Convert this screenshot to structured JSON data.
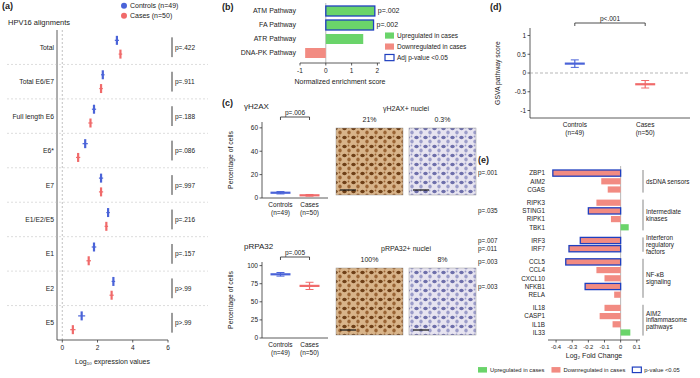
{
  "chart_data": [
    {
      "type": "dot",
      "panel_label": "(a)",
      "title": "HPV16 alignments",
      "orientation": "horizontal",
      "legend": "top",
      "categories": [
        "Total",
        "Total E6/E7",
        "Full length E6",
        "E6*",
        "E7",
        "E1/E2/E5",
        "E1",
        "E2",
        "E5"
      ],
      "series": [
        {
          "name": "Controls (n=49)",
          "color": "#4a63d8",
          "values": [
            3.1,
            2.3,
            1.8,
            1.3,
            2.2,
            2.6,
            1.8,
            2.9,
            1.1
          ],
          "errors": [
            0.12,
            0.1,
            0.12,
            0.15,
            0.12,
            0.1,
            0.13,
            0.1,
            0.2
          ]
        },
        {
          "name": "Cases (n=50)",
          "color": "#f06a6a",
          "values": [
            3.3,
            2.2,
            1.6,
            0.9,
            2.2,
            2.5,
            1.5,
            2.8,
            0.6
          ],
          "errors": [
            0.1,
            0.1,
            0.12,
            0.12,
            0.12,
            0.1,
            0.13,
            0.12,
            0.15
          ]
        }
      ],
      "annotations": [
        "p=.422",
        "p=.911",
        "p=.188",
        "p=.086",
        "p=.997",
        "p=.216",
        "p=.157",
        "p>.99",
        "p>.99"
      ],
      "x_label": "Log₁₀ expression values",
      "xlim": [
        -0.3,
        6
      ],
      "xticks": [
        0,
        2,
        4,
        6
      ]
    },
    {
      "type": "bar",
      "panel_label": "(b)",
      "orientation": "horizontal",
      "legend": "right",
      "categories": [
        "ATM Pathway",
        "FA Pathway",
        "ATR Pathway",
        "DNA-PK Pathway"
      ],
      "values": [
        1.9,
        1.85,
        1.45,
        -0.8
      ],
      "colors": [
        "#6ad46a",
        "#6ad46a",
        "#6ad46a",
        "#f28b82"
      ],
      "annotations": [
        "p=.002",
        "p=.002",
        null,
        null
      ],
      "x_label": "Normalized enrichment score",
      "xlim": [
        -1,
        2.1
      ],
      "xticks": [
        -1,
        0,
        1,
        2
      ],
      "legend_items": [
        {
          "label": "Upregulated in cases",
          "color": "#6ad46a"
        },
        {
          "label": "Downregulated in cases",
          "color": "#f28b82"
        },
        {
          "label": "Adj p-value <0.05",
          "color": "#1f3fbf",
          "marker": "outline"
        }
      ]
    },
    {
      "type": "dot",
      "panel_label": "(c)",
      "title": "γH2AX",
      "categories": [
        "Controls",
        "Cases"
      ],
      "category_counts": [
        "(n=49)",
        "(n=50)"
      ],
      "values": [
        4.5,
        2.3
      ],
      "errors": [
        1.0,
        0.7
      ],
      "colors": [
        "#4a63d8",
        "#f06a6a"
      ],
      "y_label": "Percentage of cells",
      "ylim": [
        0,
        65
      ],
      "yticks": [
        0,
        20,
        40,
        60
      ],
      "annotations": [
        "p=.006"
      ],
      "images": {
        "title": "γH2AX+ nuclei",
        "values": [
          21,
          0.3
        ],
        "value_labels": [
          "21%",
          "0.3%"
        ]
      }
    },
    {
      "type": "dot",
      "title": "pRPA32",
      "categories": [
        "Controls",
        "Cases"
      ],
      "category_counts": [
        "(n=49)",
        "(n=50)"
      ],
      "values": [
        88,
        72
      ],
      "errors": [
        2.5,
        5
      ],
      "colors": [
        "#4a63d8",
        "#f06a6a"
      ],
      "y_label": "Percentage of cells",
      "ylim": [
        0,
        105
      ],
      "yticks": [
        0,
        25,
        50,
        75,
        100
      ],
      "annotations": [
        "p=.005"
      ],
      "images": {
        "title": "pRPA32+ nuclei",
        "values": [
          100,
          8
        ],
        "value_labels": [
          "100%",
          "8%"
        ]
      }
    },
    {
      "type": "dot",
      "panel_label": "(d)",
      "categories": [
        "Controls",
        "Cases"
      ],
      "category_counts": [
        "(n=49)",
        "(n=50)"
      ],
      "values": [
        0.25,
        -0.3
      ],
      "errors": [
        0.1,
        0.1
      ],
      "colors": [
        "#4a63d8",
        "#f06a6a"
      ],
      "y_label": "GSVA pathway score",
      "ylim": [
        -1.2,
        1.2
      ],
      "yticks": [
        -1,
        -0.5,
        0,
        0.5,
        1
      ],
      "annotations": [
        "p<.001"
      ]
    },
    {
      "type": "bar",
      "panel_label": "(e)",
      "orientation": "horizontal",
      "legend": "bottom",
      "categories": [
        "ZBP1",
        "AIM2",
        "CGAS",
        "RIPK3",
        "STING1",
        "RIPK1",
        "TBK1",
        "IRF3",
        "IRF7",
        "CCL5",
        "CCL4",
        "CXCL10",
        "NFKB1",
        "RELA",
        "IL18",
        "CASP1",
        "IL1B",
        "IL33"
      ],
      "values": [
        -0.42,
        -0.12,
        -0.08,
        -0.15,
        -0.2,
        -0.06,
        0.05,
        -0.25,
        -0.32,
        -0.34,
        -0.15,
        -0.1,
        -0.22,
        -0.04,
        -0.1,
        -0.13,
        -0.05,
        0.06
      ],
      "colors": [
        "#f28b82",
        "#f28b82",
        "#f28b82",
        "#f28b82",
        "#f28b82",
        "#f28b82",
        "#6ad46a",
        "#f28b82",
        "#f28b82",
        "#f28b82",
        "#f28b82",
        "#f28b82",
        "#f28b82",
        "#f28b82",
        "#f28b82",
        "#f28b82",
        "#f28b82",
        "#6ad46a"
      ],
      "annotations": [
        "p=.001",
        null,
        null,
        null,
        "p=.035",
        null,
        null,
        "p=.007",
        "p=.011",
        "p=.003",
        null,
        null,
        "p=.003",
        null,
        null,
        null,
        null,
        null
      ],
      "groups": [
        {
          "label": "dsDNA sensors",
          "members": [
            "ZBP1",
            "AIM2",
            "CGAS"
          ]
        },
        {
          "label": "Intermediate kinases",
          "members": [
            "RIPK3",
            "STING1",
            "RIPK1",
            "TBK1"
          ]
        },
        {
          "label": "Interferon regulatory factors",
          "members": [
            "IRF3",
            "IRF7"
          ]
        },
        {
          "label": "NF-κB signaling",
          "members": [
            "CCL5",
            "CCL4",
            "CXCL10",
            "NFKB1",
            "RELA"
          ]
        },
        {
          "label": "AIM2 inflammasome pathways",
          "members": [
            "IL18",
            "CASP1",
            "IL1B",
            "IL33"
          ]
        }
      ],
      "x_label": "Log₂ Fold Change",
      "xlim": [
        -0.45,
        0.12
      ],
      "xticks": [
        -0.4,
        -0.3,
        -0.2,
        -0.1,
        0,
        0.1
      ],
      "legend_items": [
        {
          "label": "Upregulated in cases",
          "color": "#6ad46a"
        },
        {
          "label": "Downregulated in cases",
          "color": "#f28b82"
        },
        {
          "label": "p-value <0.05",
          "color": "#1f3fbf",
          "marker": "outline"
        }
      ]
    }
  ]
}
